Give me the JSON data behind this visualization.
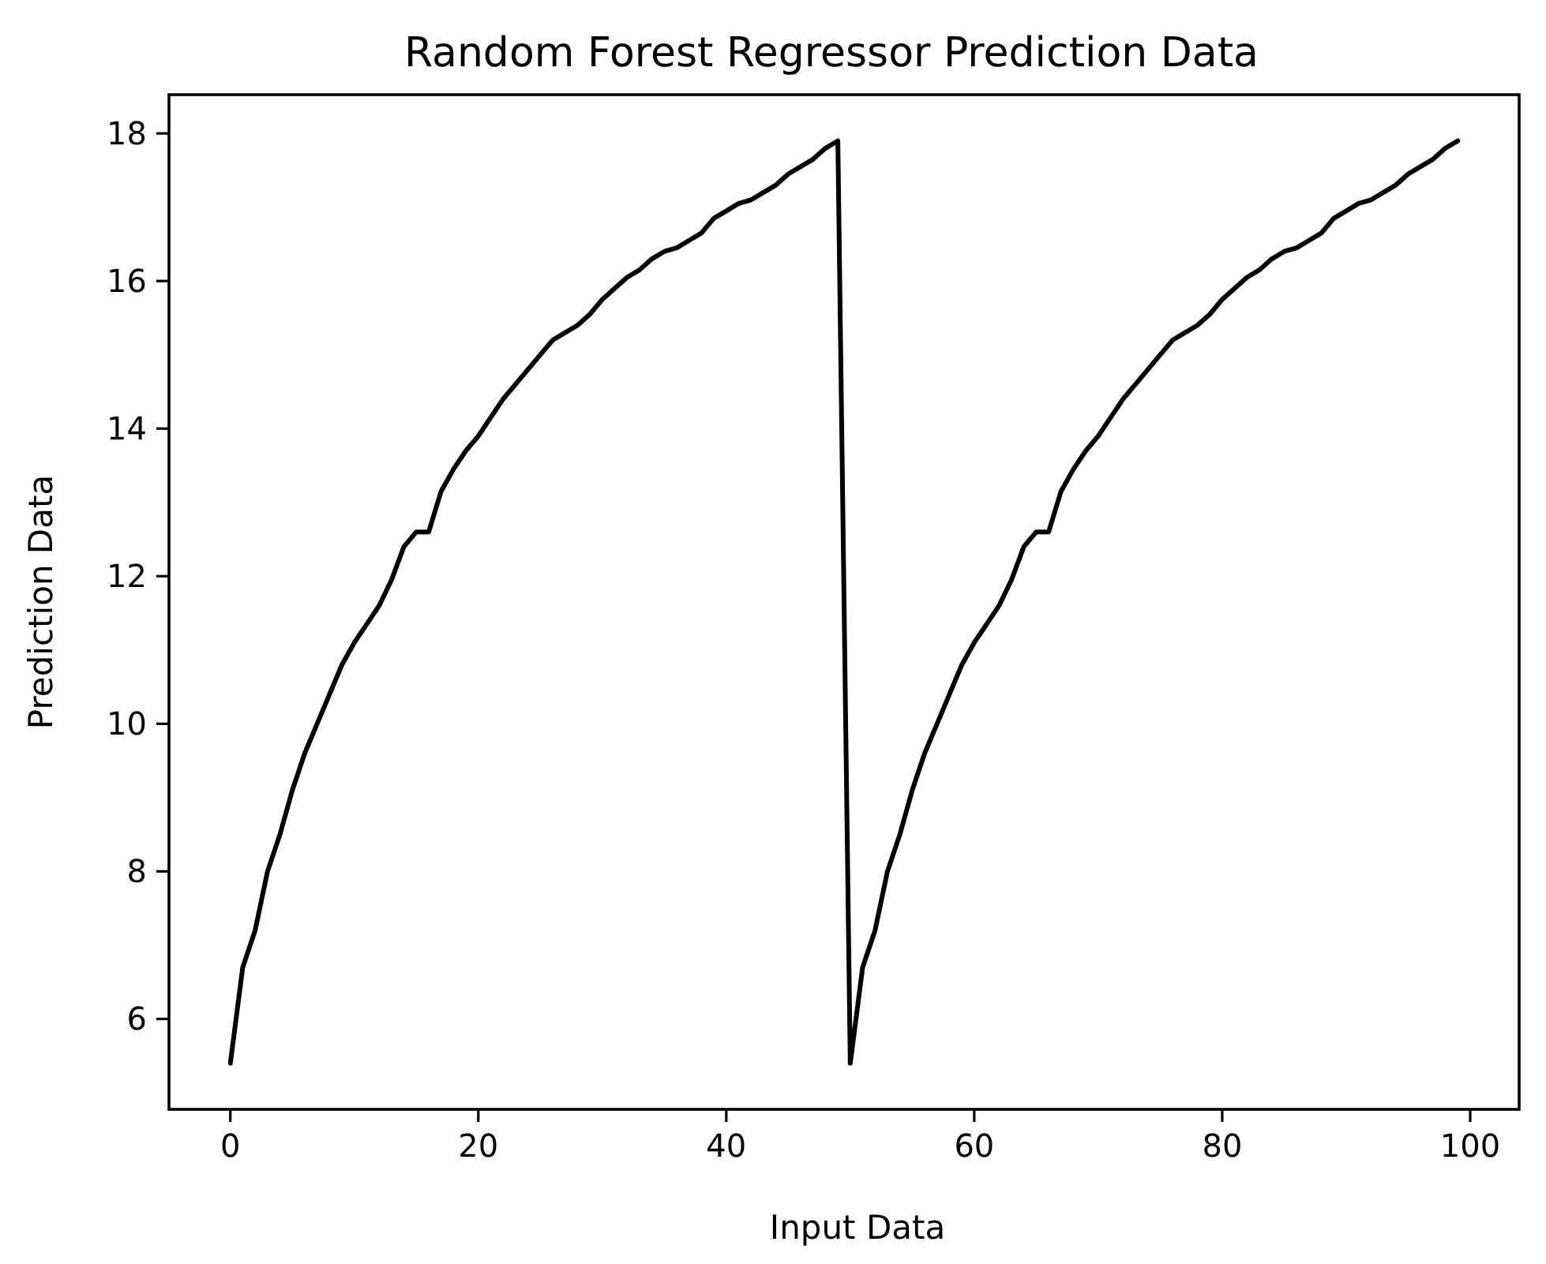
{
  "chart_data": {
    "type": "line",
    "title": "Random Forest Regressor Prediction Data",
    "xlabel": "Input Data",
    "ylabel": "Prediction Data",
    "x": [
      0,
      1,
      2,
      3,
      4,
      5,
      6,
      7,
      8,
      9,
      10,
      11,
      12,
      13,
      14,
      15,
      16,
      17,
      18,
      19,
      20,
      21,
      22,
      23,
      24,
      25,
      26,
      27,
      28,
      29,
      30,
      31,
      32,
      33,
      34,
      35,
      36,
      37,
      38,
      39,
      40,
      41,
      42,
      43,
      44,
      45,
      46,
      47,
      48,
      49,
      50,
      51,
      52,
      53,
      54,
      55,
      56,
      57,
      58,
      59,
      60,
      61,
      62,
      63,
      64,
      65,
      66,
      67,
      68,
      69,
      70,
      71,
      72,
      73,
      74,
      75,
      76,
      77,
      78,
      79,
      80,
      81,
      82,
      83,
      84,
      85,
      86,
      87,
      88,
      89,
      90,
      91,
      92,
      93,
      94,
      95,
      96,
      97,
      98,
      99
    ],
    "series": [
      {
        "color": "#000000",
        "values": [
          5.4,
          6.7,
          7.2,
          8.0,
          8.5,
          9.1,
          9.6,
          10.0,
          10.4,
          10.8,
          11.1,
          11.35,
          11.6,
          11.95,
          12.4,
          12.6,
          12.6,
          13.15,
          13.45,
          13.7,
          13.9,
          14.15,
          14.4,
          14.6,
          14.8,
          15.0,
          15.2,
          15.3,
          15.4,
          15.55,
          15.75,
          15.9,
          16.05,
          16.15,
          16.3,
          16.4,
          16.45,
          16.55,
          16.65,
          16.85,
          16.95,
          17.05,
          17.1,
          17.2,
          17.3,
          17.45,
          17.55,
          17.65,
          17.8,
          17.9,
          5.4,
          6.7,
          7.2,
          8.0,
          8.5,
          9.1,
          9.6,
          10.0,
          10.4,
          10.8,
          11.1,
          11.35,
          11.6,
          11.95,
          12.4,
          12.6,
          12.6,
          13.15,
          13.45,
          13.7,
          13.9,
          14.15,
          14.4,
          14.6,
          14.8,
          15.0,
          15.2,
          15.3,
          15.4,
          15.55,
          15.75,
          15.9,
          16.05,
          16.15,
          16.3,
          16.4,
          16.45,
          16.55,
          16.65,
          16.85,
          16.95,
          17.05,
          17.1,
          17.2,
          17.3,
          17.45,
          17.55,
          17.65,
          17.8,
          17.9
        ]
      }
    ],
    "xlim": [
      -4.95,
      103.95
    ],
    "ylim": [
      4.775,
      18.525
    ],
    "xticks": [
      0,
      20,
      40,
      60,
      80,
      100
    ],
    "yticks": [
      6,
      8,
      10,
      12,
      14,
      16,
      18
    ],
    "grid": false,
    "marker": "none",
    "line_style": "solid"
  }
}
